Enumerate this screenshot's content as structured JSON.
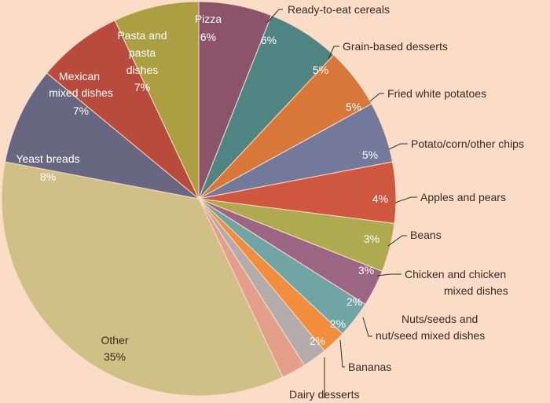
{
  "chart_data": {
    "type": "pie",
    "title": "",
    "start_angle_deg": -90,
    "slices": [
      {
        "label": "Pizza",
        "percent_label": "6%",
        "value": 6,
        "color": "#8b5469"
      },
      {
        "label": "Ready-to-eat cereals",
        "percent_label": "6%",
        "value": 6,
        "color": "#4e8582"
      },
      {
        "label": "Grain-based desserts",
        "percent_label": "5%",
        "value": 5,
        "color": "#d87838"
      },
      {
        "label": "Fried white potatoes",
        "percent_label": "5%",
        "value": 5,
        "color": "#73799a"
      },
      {
        "label": "Potato/corn/other chips",
        "percent_label": "5%",
        "value": 5,
        "color": "#d0573f"
      },
      {
        "label": "Apples and pears",
        "percent_label": "4%",
        "value": 4,
        "color": "#adaa4f"
      },
      {
        "label": "Beans",
        "percent_label": "3%",
        "value": 3,
        "color": "#9b6683"
      },
      {
        "label": "Chicken and chicken mixed dishes",
        "percent_label": "3%",
        "value": 3,
        "color": "#6fa5a5"
      },
      {
        "label": "Nuts/seeds and nut/seed mixed dishes",
        "percent_label": "2%",
        "value": 2,
        "color": "#f18d3c"
      },
      {
        "label": "Bananas",
        "percent_label": "2%",
        "value": 2,
        "color": "#b2acad"
      },
      {
        "label": "Dairy desserts",
        "percent_label": "2%",
        "value": 2,
        "color": "#e49f8a"
      },
      {
        "label": "Other",
        "percent_label": "35%",
        "value": 35,
        "color": "#d0c085"
      },
      {
        "label": "Yeast breads",
        "percent_label": "8%",
        "value": 8,
        "color": "#676781"
      },
      {
        "label": "Mexican mixed dishes",
        "percent_label": "7%",
        "value": 7,
        "color": "#b84b3c"
      },
      {
        "label": "Pasta and pasta dishes",
        "percent_label": "7%",
        "value": 7,
        "color": "#ab9f42"
      }
    ]
  },
  "colors": {
    "background": "#fbdcc6",
    "label_text": "#3a2a22",
    "inner_text": "#ffffff"
  }
}
